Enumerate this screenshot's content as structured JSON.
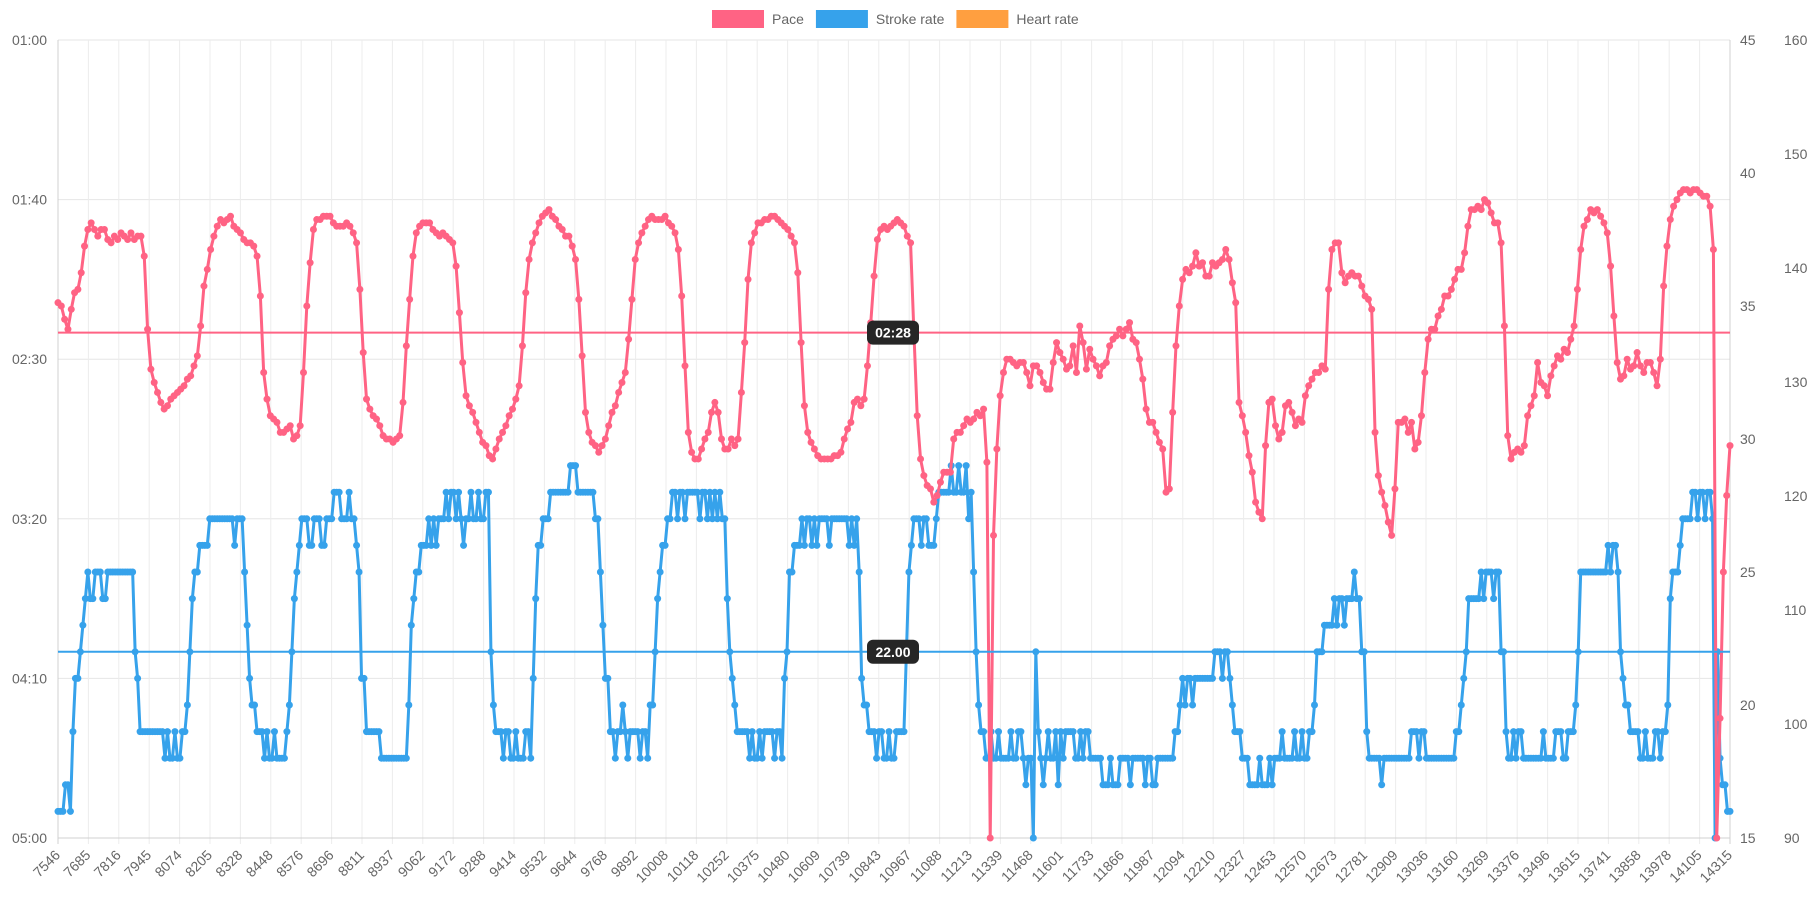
{
  "chart_data": {
    "type": "line",
    "legend": [
      {
        "name": "Pace",
        "color": "#ff6384"
      },
      {
        "name": "Stroke rate",
        "color": "#36a2eb"
      },
      {
        "name": "Heart rate",
        "color": "#ff9f40"
      }
    ],
    "x_labels": [
      "7546",
      "7685",
      "7816",
      "7945",
      "8074",
      "8205",
      "8328",
      "8448",
      "8576",
      "8696",
      "8811",
      "8937",
      "9062",
      "9172",
      "9288",
      "9414",
      "9532",
      "9644",
      "9768",
      "9892",
      "10008",
      "10118",
      "10252",
      "10375",
      "10480",
      "10609",
      "10739",
      "10843",
      "10967",
      "11088",
      "11213",
      "11339",
      "11468",
      "11601",
      "11733",
      "11866",
      "11987",
      "12094",
      "12210",
      "12327",
      "12453",
      "12570",
      "12673",
      "12781",
      "12909",
      "13036",
      "13160",
      "13269",
      "13376",
      "13496",
      "13615",
      "13741",
      "13858",
      "13978",
      "14105",
      "14315"
    ],
    "y_left_pace": {
      "ticks": [
        "01:00",
        "01:40",
        "02:30",
        "03:20",
        "04:10",
        "05:00"
      ],
      "min_seconds": 60,
      "max_seconds": 300
    },
    "y_right_stroke": {
      "ticks": [
        "15",
        "20",
        "25",
        "30",
        "35",
        "40",
        "45"
      ],
      "min": 15,
      "max": 45
    },
    "y_right_hr": {
      "ticks": [
        "90",
        "100",
        "110",
        "120",
        "130",
        "140",
        "150",
        "160"
      ],
      "min": 90,
      "max": 160
    },
    "pace_avg": {
      "label": "02:28",
      "seconds": 148
    },
    "stroke_avg": {
      "label": "22.00",
      "value": 22
    },
    "series": {
      "pace_seconds": [
        139,
        140,
        144,
        147,
        141,
        136,
        135,
        130,
        122,
        117,
        115,
        117,
        119,
        117,
        117,
        120,
        121,
        119,
        120,
        118,
        119,
        120,
        118,
        120,
        119,
        119,
        125,
        147,
        159,
        163,
        166,
        169,
        171,
        170,
        168,
        167,
        166,
        165,
        164,
        162,
        161,
        158,
        155,
        146,
        134,
        129,
        123,
        119,
        116,
        114,
        115,
        114,
        113,
        116,
        117,
        118,
        120,
        121,
        121,
        122,
        125,
        137,
        160,
        168,
        173,
        174,
        175,
        178,
        178,
        177,
        176,
        180,
        179,
        176,
        160,
        140,
        127,
        117,
        114,
        114,
        113,
        113,
        113,
        115,
        116,
        116,
        116,
        115,
        116,
        118,
        121,
        135,
        154,
        168,
        171,
        173,
        174,
        176,
        179,
        180,
        180,
        181,
        180,
        179,
        169,
        152,
        138,
        125,
        118,
        116,
        115,
        115,
        115,
        117,
        118,
        119,
        118,
        119,
        120,
        121,
        128,
        142,
        157,
        167,
        170,
        172,
        175,
        178,
        181,
        182,
        185,
        186,
        183,
        180,
        178,
        176,
        173,
        171,
        168,
        164,
        152,
        136,
        126,
        121,
        118,
        115,
        113,
        112,
        111,
        113,
        114,
        116,
        117,
        119,
        119,
        122,
        126,
        138,
        155,
        172,
        178,
        181,
        182,
        184,
        182,
        180,
        176,
        172,
        170,
        166,
        163,
        160,
        150,
        138,
        126,
        121,
        118,
        116,
        114,
        113,
        114,
        114,
        114,
        113,
        115,
        116,
        118,
        123,
        137,
        158,
        178,
        184,
        186,
        186,
        183,
        180,
        178,
        172,
        169,
        172,
        180,
        183,
        183,
        180,
        182,
        180,
        166,
        151,
        132,
        121,
        118,
        115,
        115,
        114,
        114,
        113,
        113,
        114,
        115,
        116,
        117,
        119,
        121,
        130,
        151,
        170,
        178,
        181,
        183,
        185,
        186,
        186,
        186,
        186,
        185,
        185,
        184,
        180,
        177,
        175,
        169,
        168,
        170,
        168,
        158,
        145,
        131,
        120,
        117,
        116,
        117,
        116,
        115,
        114,
        115,
        116,
        119,
        121,
        148,
        173,
        186,
        191,
        194,
        195,
        199,
        197,
        193,
        190,
        190,
        190,
        180,
        178,
        178,
        176,
        174,
        175,
        174,
        172,
        173,
        171,
        187,
        300,
        209,
        183,
        167,
        160,
        156,
        156,
        157,
        158,
        157,
        157,
        160,
        164,
        158,
        158,
        160,
        163,
        165,
        165,
        157,
        151,
        154,
        156,
        159,
        158,
        152,
        160,
        146,
        151,
        159,
        153,
        156,
        158,
        161,
        158,
        157,
        152,
        150,
        149,
        147,
        149,
        147,
        145,
        150,
        151,
        156,
        162,
        171,
        175,
        175,
        178,
        181,
        183,
        196,
        195,
        172,
        152,
        140,
        132,
        129,
        130,
        128,
        124,
        128,
        127,
        131,
        131,
        127,
        128,
        127,
        126,
        123,
        126,
        133,
        139,
        169,
        173,
        178,
        185,
        190,
        199,
        202,
        204,
        182,
        169,
        168,
        176,
        180,
        178,
        170,
        169,
        172,
        176,
        174,
        175,
        167,
        164,
        162,
        160,
        160,
        158,
        159,
        135,
        123,
        121,
        121,
        130,
        133,
        131,
        130,
        131,
        131,
        134,
        137,
        138,
        141,
        178,
        191,
        196,
        200,
        205,
        209,
        195,
        175,
        175,
        174,
        178,
        175,
        183,
        181,
        173,
        160,
        150,
        147,
        147,
        143,
        141,
        137,
        137,
        135,
        132,
        129,
        129,
        124,
        116,
        111,
        111,
        110,
        111,
        108,
        109,
        112,
        115,
        115,
        121,
        146,
        179,
        186,
        184,
        183,
        184,
        182,
        173,
        170,
        167,
        157,
        163,
        164,
        167,
        161,
        158,
        155,
        156,
        153,
        154,
        150,
        146,
        135,
        123,
        116,
        114,
        111,
        112,
        111,
        113,
        115,
        118,
        128,
        143,
        157,
        162,
        161,
        156,
        159,
        158,
        154,
        158,
        160,
        157,
        157,
        160,
        164,
        156,
        134,
        122,
        114,
        110,
        108,
        106,
        105,
        105,
        106,
        105,
        105,
        106,
        107,
        107,
        110,
        123,
        300,
        264,
        220,
        197,
        182
      ],
      "stroke_rate": [
        16,
        16,
        16,
        17,
        17,
        16,
        19,
        21,
        21,
        22,
        23,
        24,
        25,
        24,
        24,
        25,
        25,
        25,
        24,
        24,
        25,
        25,
        25,
        25,
        25,
        25,
        25,
        25,
        25,
        25,
        25,
        22,
        21,
        19,
        19,
        19,
        19,
        19,
        19,
        19,
        19,
        19,
        19,
        18,
        19,
        18,
        18,
        19,
        18,
        18,
        19,
        19,
        20,
        22,
        24,
        25,
        25,
        26,
        26,
        26,
        26,
        27,
        27,
        27,
        27,
        27,
        27,
        27,
        27,
        27,
        27,
        26,
        27,
        27,
        27,
        25,
        23,
        21,
        20,
        20,
        19,
        19,
        19,
        18,
        19,
        18,
        18,
        19,
        18,
        18,
        18,
        18,
        19,
        20,
        22,
        24,
        25,
        26,
        27,
        27,
        27,
        26,
        26,
        27,
        27,
        27,
        26,
        26,
        27,
        27,
        27,
        28,
        28,
        28,
        27,
        27,
        27,
        28,
        27,
        27,
        26,
        25,
        21,
        21,
        19,
        19,
        19,
        19,
        19,
        19,
        18,
        18,
        18,
        18,
        18,
        18,
        18,
        18,
        18,
        18,
        18,
        20,
        23,
        24,
        25,
        25,
        26,
        26,
        26,
        27,
        26,
        27,
        26,
        27,
        27,
        27,
        28,
        27,
        28,
        28,
        27,
        28,
        27,
        26,
        27,
        27,
        28,
        27,
        27,
        28,
        27,
        27,
        28,
        28,
        22,
        20,
        19,
        19,
        19,
        18,
        19,
        19,
        18,
        18,
        19,
        18,
        18,
        18,
        19,
        19,
        18,
        21,
        24,
        26,
        26,
        27,
        27,
        27,
        28,
        28,
        28,
        28,
        28,
        28,
        28,
        28,
        29,
        29,
        29,
        28,
        28,
        28,
        28,
        28,
        28,
        28,
        27,
        27,
        25,
        23,
        21,
        21,
        19,
        19,
        18,
        19,
        19,
        20,
        19,
        18,
        19,
        19,
        19,
        19,
        18,
        19,
        19,
        18,
        20,
        20,
        22,
        24,
        25,
        26,
        26,
        27,
        27,
        28,
        28,
        27,
        28,
        28,
        27,
        28,
        28,
        28,
        28,
        28,
        27,
        28,
        28,
        27,
        28,
        27,
        28,
        27,
        28,
        27,
        27,
        24,
        22,
        21,
        20,
        19,
        19,
        19,
        19,
        19,
        18,
        19,
        18,
        18,
        19,
        18,
        19,
        19,
        19,
        19,
        18,
        19,
        19,
        18,
        21,
        22,
        25,
        25,
        26,
        26,
        26,
        27,
        26,
        27,
        27,
        26,
        27,
        26,
        27,
        27,
        27,
        27,
        26,
        27,
        27,
        27,
        27,
        27,
        27,
        27,
        26,
        27,
        26,
        27,
        25,
        21,
        20,
        20,
        19,
        19,
        19,
        18,
        19,
        19,
        18,
        18,
        19,
        18,
        18,
        19,
        19,
        19,
        19,
        22,
        25,
        26,
        27,
        27,
        27,
        26,
        27,
        27,
        26,
        26,
        26,
        27,
        28,
        28,
        28,
        28,
        28,
        29,
        28,
        28,
        29,
        28,
        28,
        29,
        27,
        28,
        25,
        22,
        20,
        19,
        19,
        18,
        18,
        19,
        18,
        18,
        19,
        18,
        18,
        18,
        18,
        19,
        18,
        18,
        19,
        19,
        18,
        17,
        18,
        18,
        15,
        22,
        19,
        18,
        17,
        18,
        19,
        18,
        18,
        19,
        17,
        19,
        18,
        19,
        19,
        19,
        19,
        18,
        18,
        19,
        18,
        19,
        19,
        18,
        18,
        18,
        18,
        18,
        17,
        17,
        17,
        18,
        17,
        17,
        17,
        18,
        18,
        18,
        18,
        17,
        18,
        18,
        18,
        18,
        18,
        17,
        18,
        18,
        17,
        17,
        18,
        18,
        18,
        18,
        18,
        18,
        18,
        19,
        19,
        20,
        21,
        20,
        21,
        21,
        20,
        21,
        21,
        21,
        21,
        21,
        21,
        21,
        21,
        22,
        22,
        22,
        21,
        22,
        22,
        21,
        20,
        19,
        19,
        19,
        18,
        18,
        18,
        17,
        17,
        17,
        17,
        18,
        17,
        17,
        17,
        18,
        17,
        18,
        18,
        18,
        19,
        18,
        18,
        18,
        18,
        19,
        18,
        18,
        19,
        18,
        18,
        19,
        19,
        20,
        22,
        22,
        22,
        23,
        23,
        23,
        23,
        24,
        23,
        24,
        24,
        23,
        24,
        24,
        24,
        25,
        24,
        24,
        22,
        22,
        19,
        18,
        18,
        18,
        18,
        18,
        17,
        18,
        18,
        18,
        18,
        18,
        18,
        18,
        18,
        18,
        18,
        18,
        19,
        19,
        19,
        18,
        19,
        19,
        18,
        18,
        18,
        18,
        18,
        18,
        18,
        18,
        18,
        18,
        18,
        18,
        19,
        19,
        20,
        21,
        22,
        24,
        24,
        24,
        24,
        24,
        25,
        24,
        25,
        25,
        25,
        24,
        25,
        25,
        22,
        22,
        19,
        18,
        18,
        19,
        18,
        19,
        19,
        18,
        18,
        18,
        18,
        18,
        18,
        18,
        18,
        19,
        18,
        18,
        18,
        18,
        19,
        19,
        19,
        18,
        18,
        19,
        19,
        19,
        20,
        22,
        25,
        25,
        25,
        25,
        25,
        25,
        25,
        25,
        25,
        25,
        25,
        26,
        25,
        26,
        26,
        25,
        22,
        21,
        20,
        20,
        19,
        19,
        19,
        19,
        18,
        18,
        19,
        18,
        18,
        18,
        19,
        19,
        18,
        19,
        19,
        20,
        24,
        25,
        25,
        25,
        26,
        27,
        27,
        27,
        27,
        28,
        28,
        27,
        28,
        28,
        27,
        28,
        28,
        27,
        15,
        22,
        18,
        17,
        17,
        16,
        16
      ]
    }
  }
}
